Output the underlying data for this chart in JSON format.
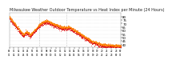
{
  "title": "Milwaukee Weather Outdoor Temperature vs Heat Index per Minute (24 Hours)",
  "title_fontsize": 3.5,
  "bg_color": "#ffffff",
  "plot_bg": "#ffffff",
  "line1_color": "#dd0000",
  "line2_color": "#ff8800",
  "grid_color": "#cccccc",
  "yticks": [
    80,
    75,
    70,
    65,
    60,
    55,
    50,
    45,
    40
  ],
  "ylim": [
    36,
    86
  ],
  "vline_x": [
    0.265,
    0.51
  ],
  "n_points": 1440
}
